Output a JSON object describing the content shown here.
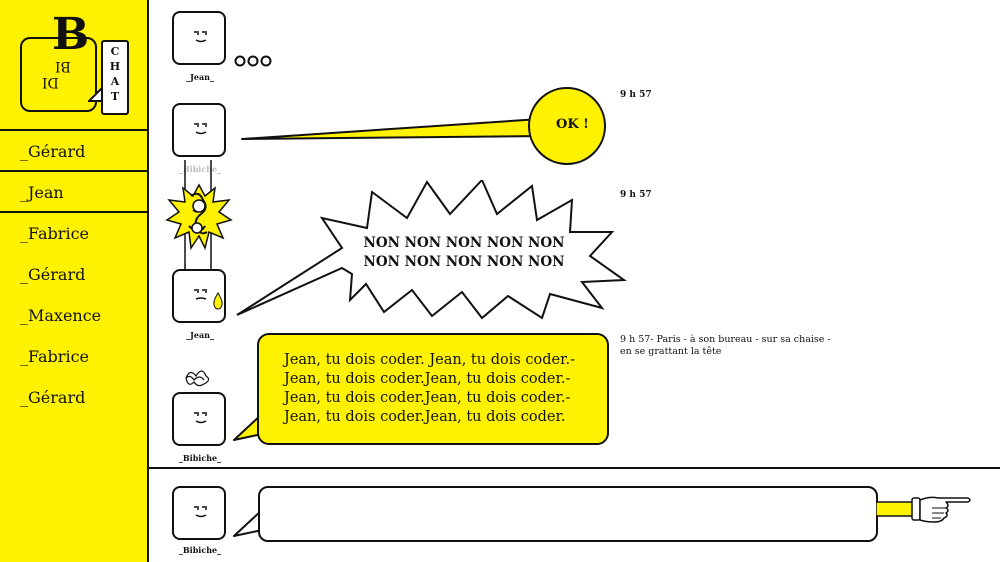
{
  "logo": {
    "big_letter": "B",
    "bi_text": "BI",
    "di_text": "DI",
    "chat_letters": [
      "C",
      "H",
      "A",
      "T"
    ]
  },
  "sidebar": {
    "contacts": [
      {
        "label": "_Gérard"
      },
      {
        "label": "_Jean"
      },
      {
        "label": "_Fabrice"
      },
      {
        "label": "_Gérard"
      },
      {
        "label": "_Maxence"
      },
      {
        "label": "_Fabrice"
      },
      {
        "label": "_Gérard"
      }
    ]
  },
  "messages": [
    {
      "user": "_Jean_",
      "typing": "ooo"
    },
    {
      "user": "_Bibiche_",
      "text": "OK !",
      "time": "9 h  57"
    },
    {
      "user": "_Jean_",
      "text_lines": [
        "NON NON NON NON NON",
        "NON NON NON NON NON"
      ],
      "time": "9 h  57"
    },
    {
      "user": "_Bibiche_",
      "text_lines": [
        "Jean, tu dois coder. Jean, tu dois coder.-",
        "Jean, tu dois coder.Jean, tu dois coder.-",
        "Jean, tu dois coder.Jean, tu dois coder.-",
        "Jean, tu dois coder.Jean, tu dois coder."
      ],
      "time_lines": [
        "9 h  57- Paris - à son bureau - sur sa chaise -",
        "en se grattant la tête"
      ]
    }
  ],
  "composer": {
    "user": "_Bibiche_",
    "value": "",
    "placeholder": ""
  },
  "colors": {
    "accent": "#FFF200",
    "ink": "#111111"
  }
}
